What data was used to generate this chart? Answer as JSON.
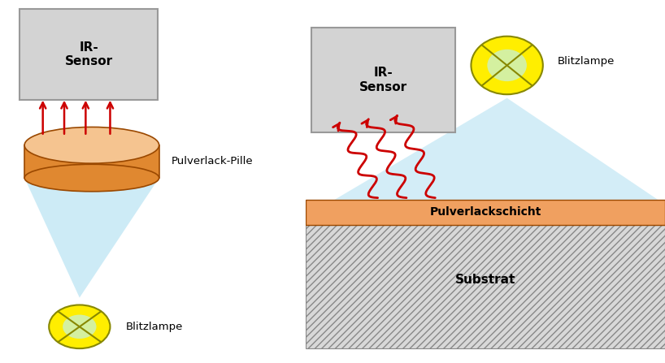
{
  "bg_color": "#ffffff",
  "ir_sensor_color": "#d3d3d3",
  "ir_sensor_border": "#999999",
  "pill_top_color": "#f5c490",
  "pill_side_color": "#e08830",
  "light_cone_color": "#c5e8f5",
  "arrow_color": "#cc0000",
  "lamp_color": "#ffee00",
  "lamp_inner_color": "#d4f0a0",
  "substrate_color": "#d8d8d8",
  "powder_layer_color": "#f0a060",
  "text_color": "#000000",
  "label_pulverlack_pille": "Pulverlack-Pille",
  "label_blitzlampe": "Blitzlampe",
  "label_ir_sensor": "IR-\nSensor",
  "label_pulverlackschicht": "Pulverlackschicht",
  "label_substrat": "Substrat"
}
